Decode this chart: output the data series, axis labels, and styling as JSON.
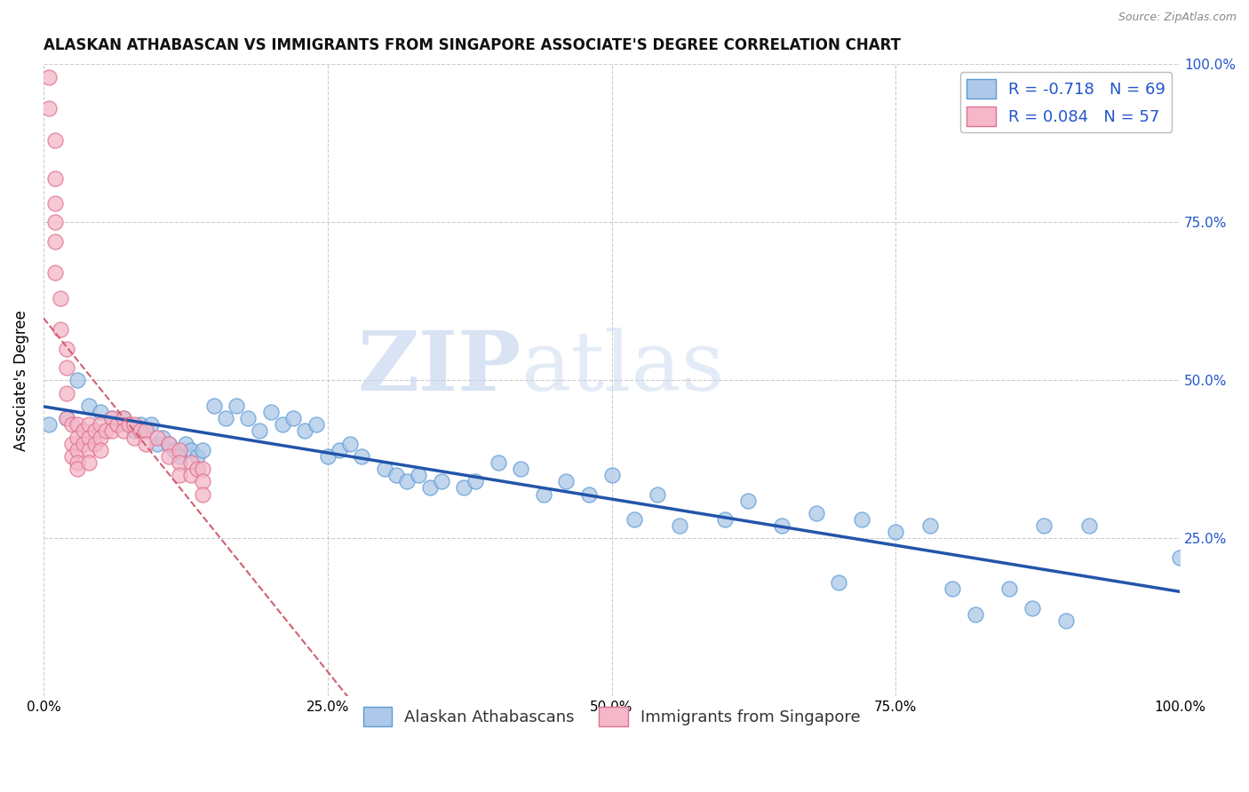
{
  "title": "ALASKAN ATHABASCAN VS IMMIGRANTS FROM SINGAPORE ASSOCIATE'S DEGREE CORRELATION CHART",
  "source": "Source: ZipAtlas.com",
  "ylabel": "Associate's Degree",
  "xlim": [
    0.0,
    1.0
  ],
  "ylim": [
    0.0,
    1.0
  ],
  "xticks": [
    0.0,
    0.25,
    0.5,
    0.75,
    1.0
  ],
  "xtick_labels": [
    "0.0%",
    "25.0%",
    "50.0%",
    "75.0%",
    "100.0%"
  ],
  "yticks": [
    0.25,
    0.5,
    0.75,
    1.0
  ],
  "ytick_labels_right": [
    "25.0%",
    "50.0%",
    "75.0%",
    "100.0%"
  ],
  "blue_color": "#adc8e8",
  "blue_edge_color": "#5b9bd5",
  "pink_color": "#f4b8c8",
  "pink_edge_color": "#e07090",
  "blue_line_color": "#2255aa",
  "pink_line_color": "#d06070",
  "blue_R": -0.718,
  "blue_N": 69,
  "pink_R": 0.084,
  "pink_N": 57,
  "legend_label_blue": "Alaskan Athabascans",
  "legend_label_pink": "Immigrants from Singapore",
  "watermark_zip": "ZIP",
  "watermark_atlas": "atlas",
  "background_color": "#ffffff",
  "grid_color": "#cccccc",
  "title_fontsize": 12,
  "axis_fontsize": 11,
  "legend_fontsize": 13,
  "blue_x": [
    0.005,
    0.02,
    0.03,
    0.04,
    0.05,
    0.06,
    0.065,
    0.07,
    0.075,
    0.08,
    0.085,
    0.09,
    0.095,
    0.1,
    0.105,
    0.11,
    0.115,
    0.12,
    0.125,
    0.13,
    0.135,
    0.14,
    0.15,
    0.16,
    0.17,
    0.18,
    0.19,
    0.2,
    0.21,
    0.22,
    0.23,
    0.24,
    0.25,
    0.26,
    0.27,
    0.28,
    0.3,
    0.31,
    0.32,
    0.33,
    0.34,
    0.35,
    0.37,
    0.38,
    0.4,
    0.42,
    0.44,
    0.46,
    0.48,
    0.5,
    0.52,
    0.54,
    0.56,
    0.6,
    0.62,
    0.65,
    0.68,
    0.7,
    0.72,
    0.75,
    0.78,
    0.8,
    0.82,
    0.85,
    0.87,
    0.88,
    0.9,
    0.92,
    1.0
  ],
  "blue_y": [
    0.43,
    0.44,
    0.5,
    0.46,
    0.45,
    0.44,
    0.43,
    0.44,
    0.43,
    0.42,
    0.43,
    0.42,
    0.43,
    0.4,
    0.41,
    0.4,
    0.39,
    0.38,
    0.4,
    0.39,
    0.38,
    0.39,
    0.46,
    0.44,
    0.46,
    0.44,
    0.42,
    0.45,
    0.43,
    0.44,
    0.42,
    0.43,
    0.38,
    0.39,
    0.4,
    0.38,
    0.36,
    0.35,
    0.34,
    0.35,
    0.33,
    0.34,
    0.33,
    0.34,
    0.37,
    0.36,
    0.32,
    0.34,
    0.32,
    0.35,
    0.28,
    0.32,
    0.27,
    0.28,
    0.31,
    0.27,
    0.29,
    0.18,
    0.28,
    0.26,
    0.27,
    0.17,
    0.13,
    0.17,
    0.14,
    0.27,
    0.12,
    0.27,
    0.22
  ],
  "pink_x": [
    0.005,
    0.005,
    0.01,
    0.01,
    0.01,
    0.01,
    0.01,
    0.01,
    0.015,
    0.015,
    0.02,
    0.02,
    0.02,
    0.02,
    0.025,
    0.025,
    0.025,
    0.03,
    0.03,
    0.03,
    0.03,
    0.03,
    0.035,
    0.035,
    0.04,
    0.04,
    0.04,
    0.04,
    0.045,
    0.045,
    0.05,
    0.05,
    0.05,
    0.055,
    0.06,
    0.06,
    0.065,
    0.07,
    0.07,
    0.075,
    0.08,
    0.08,
    0.085,
    0.09,
    0.09,
    0.1,
    0.11,
    0.11,
    0.12,
    0.12,
    0.12,
    0.13,
    0.13,
    0.135,
    0.14,
    0.14,
    0.14
  ],
  "pink_y": [
    0.98,
    0.93,
    0.88,
    0.82,
    0.78,
    0.75,
    0.72,
    0.67,
    0.63,
    0.58,
    0.55,
    0.52,
    0.48,
    0.44,
    0.43,
    0.4,
    0.38,
    0.43,
    0.41,
    0.39,
    0.37,
    0.36,
    0.42,
    0.4,
    0.43,
    0.41,
    0.39,
    0.37,
    0.42,
    0.4,
    0.43,
    0.41,
    0.39,
    0.42,
    0.44,
    0.42,
    0.43,
    0.44,
    0.42,
    0.43,
    0.43,
    0.41,
    0.42,
    0.42,
    0.4,
    0.41,
    0.4,
    0.38,
    0.39,
    0.37,
    0.35,
    0.37,
    0.35,
    0.36,
    0.36,
    0.34,
    0.32
  ]
}
